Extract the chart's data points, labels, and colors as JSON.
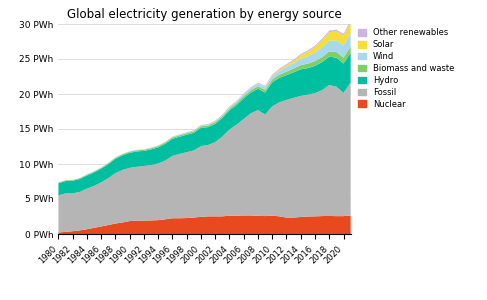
{
  "title": "Global electricity generation by energy source",
  "years": [
    1980,
    1981,
    1982,
    1983,
    1984,
    1985,
    1986,
    1987,
    1988,
    1989,
    1990,
    1991,
    1992,
    1993,
    1994,
    1995,
    1996,
    1997,
    1998,
    1999,
    2000,
    2001,
    2002,
    2003,
    2004,
    2005,
    2006,
    2007,
    2008,
    2009,
    2010,
    2011,
    2012,
    2013,
    2014,
    2015,
    2016,
    2017,
    2018,
    2019,
    2020,
    2021
  ],
  "nuclear": [
    0.22,
    0.3,
    0.4,
    0.52,
    0.68,
    0.88,
    1.08,
    1.28,
    1.5,
    1.65,
    1.85,
    1.9,
    1.92,
    1.94,
    1.98,
    2.1,
    2.25,
    2.25,
    2.28,
    2.35,
    2.45,
    2.52,
    2.52,
    2.52,
    2.62,
    2.62,
    2.65,
    2.65,
    2.6,
    2.56,
    2.63,
    2.52,
    2.35,
    2.35,
    2.43,
    2.5,
    2.52,
    2.56,
    2.58,
    2.55,
    2.55,
    2.65
  ],
  "fossil": [
    5.3,
    5.5,
    5.4,
    5.5,
    5.8,
    6.0,
    6.3,
    6.7,
    7.2,
    7.5,
    7.6,
    7.7,
    7.8,
    7.9,
    8.1,
    8.4,
    8.9,
    9.2,
    9.4,
    9.6,
    10.1,
    10.2,
    10.6,
    11.4,
    12.3,
    13.0,
    13.8,
    14.6,
    15.1,
    14.5,
    15.6,
    16.3,
    16.8,
    17.1,
    17.3,
    17.4,
    17.6,
    18.0,
    18.7,
    18.5,
    17.6,
    19.0
  ],
  "hydro": [
    1.72,
    1.76,
    1.8,
    1.84,
    1.88,
    1.92,
    1.96,
    2.0,
    2.05,
    2.1,
    2.15,
    2.2,
    2.15,
    2.25,
    2.3,
    2.4,
    2.45,
    2.45,
    2.5,
    2.5,
    2.62,
    2.55,
    2.6,
    2.65,
    2.75,
    2.8,
    2.95,
    2.95,
    3.05,
    3.15,
    3.45,
    3.48,
    3.55,
    3.65,
    3.8,
    3.8,
    3.9,
    4.0,
    4.05,
    4.15,
    4.2,
    4.25
  ],
  "biomass": [
    0.1,
    0.1,
    0.1,
    0.1,
    0.11,
    0.12,
    0.12,
    0.13,
    0.14,
    0.14,
    0.15,
    0.15,
    0.16,
    0.16,
    0.17,
    0.18,
    0.19,
    0.2,
    0.21,
    0.22,
    0.23,
    0.24,
    0.25,
    0.26,
    0.28,
    0.3,
    0.32,
    0.34,
    0.36,
    0.38,
    0.42,
    0.46,
    0.5,
    0.55,
    0.6,
    0.64,
    0.68,
    0.72,
    0.76,
    0.8,
    0.84,
    0.9
  ],
  "wind": [
    0.0,
    0.0,
    0.01,
    0.01,
    0.01,
    0.01,
    0.01,
    0.01,
    0.02,
    0.02,
    0.02,
    0.02,
    0.03,
    0.03,
    0.03,
    0.04,
    0.05,
    0.06,
    0.07,
    0.08,
    0.1,
    0.1,
    0.12,
    0.15,
    0.17,
    0.2,
    0.25,
    0.3,
    0.35,
    0.4,
    0.45,
    0.55,
    0.65,
    0.75,
    0.9,
    1.05,
    1.2,
    1.4,
    1.55,
    1.65,
    1.75,
    1.95
  ],
  "solar": [
    0.0,
    0.0,
    0.0,
    0.0,
    0.0,
    0.0,
    0.0,
    0.0,
    0.0,
    0.0,
    0.0,
    0.0,
    0.0,
    0.0,
    0.0,
    0.0,
    0.0,
    0.0,
    0.0,
    0.0,
    0.01,
    0.01,
    0.01,
    0.01,
    0.02,
    0.02,
    0.02,
    0.03,
    0.04,
    0.06,
    0.1,
    0.15,
    0.25,
    0.35,
    0.5,
    0.65,
    0.8,
    1.0,
    1.2,
    1.3,
    1.4,
    1.55
  ],
  "other_renewables": [
    0.03,
    0.03,
    0.03,
    0.03,
    0.04,
    0.04,
    0.04,
    0.04,
    0.05,
    0.05,
    0.05,
    0.05,
    0.05,
    0.06,
    0.06,
    0.06,
    0.07,
    0.07,
    0.07,
    0.08,
    0.08,
    0.08,
    0.09,
    0.09,
    0.1,
    0.1,
    0.11,
    0.11,
    0.12,
    0.13,
    0.14,
    0.15,
    0.16,
    0.17,
    0.18,
    0.19,
    0.2,
    0.21,
    0.22,
    0.23,
    0.24,
    0.25
  ],
  "colors": {
    "nuclear": "#e8491e",
    "fossil": "#b5b5b5",
    "hydro": "#00bfa0",
    "biomass": "#7ecf6a",
    "wind": "#a8d8f0",
    "solar": "#f5de3a",
    "other_renewables": "#cdb4e8"
  },
  "legend_labels": [
    "Other renewables",
    "Solar",
    "Wind",
    "Biomass and waste",
    "Hydro",
    "Fossil",
    "Nuclear"
  ],
  "ylabel_ticks": [
    "0 PWh",
    "5 PWh",
    "10 PWh",
    "15 PWh",
    "20 PWh",
    "25 PWh",
    "30 PWh"
  ],
  "ytick_vals": [
    0,
    5,
    10,
    15,
    20,
    25,
    30
  ],
  "ylim": [
    0,
    30
  ],
  "figsize": [
    4.87,
    3.0
  ],
  "dpi": 100
}
